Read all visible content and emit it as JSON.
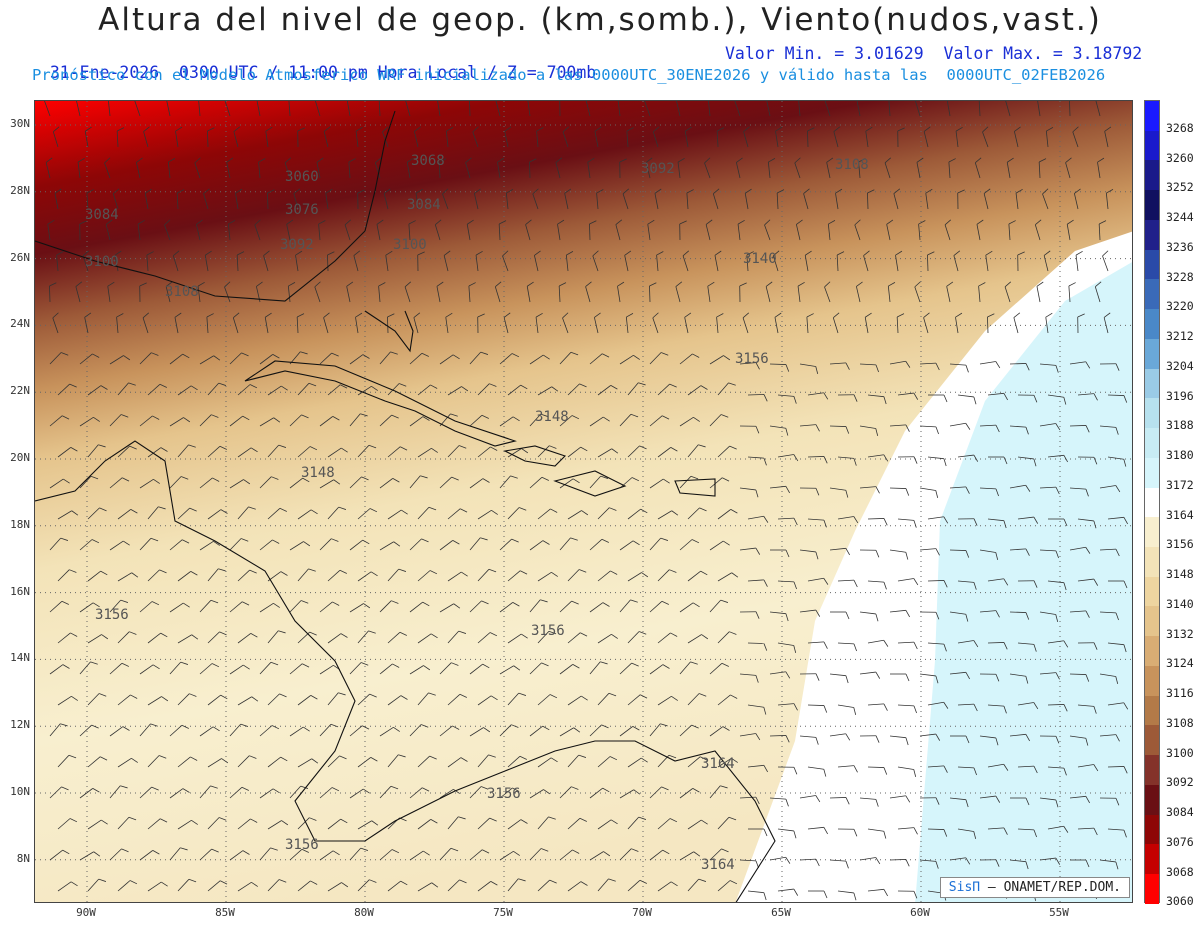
{
  "header": {
    "title": "Altura del nivel de geop. (km,somb.), Viento(nudos,vast.)",
    "sub_left": "31-Ene-2026  0300 UTC / 11:00 pm Hora Local / Z = 700mb",
    "sub_right": "Valor Min. = 3.01629  Valor Max. = 3.18792",
    "sub2": "Pronóstico con el Modelo Atmosferico WRF inicializado a las 0000UTC_30ENE2026 y válido hasta las  0000UTC_02FEB2026"
  },
  "axes": {
    "lat_labels": [
      "30N",
      "28N",
      "26N",
      "24N",
      "22N",
      "20N",
      "18N",
      "16N",
      "14N",
      "12N",
      "10N",
      "8N"
    ],
    "lon_labels": [
      "90W",
      "85W",
      "80W",
      "75W",
      "70W",
      "65W",
      "60W",
      "55W"
    ]
  },
  "colorbar": {
    "levels": [
      "3268",
      "3260",
      "3252",
      "3244",
      "3236",
      "3228",
      "3220",
      "3212",
      "3204",
      "3196",
      "3188",
      "3180",
      "3172",
      "3164",
      "3156",
      "3148",
      "3140",
      "3132",
      "3124",
      "3116",
      "3108",
      "3100",
      "3092",
      "3084",
      "3076",
      "3068",
      "3060"
    ],
    "colors": [
      "#1a1aff",
      "#1a1acc",
      "#1a1a8a",
      "#101060",
      "#20208a",
      "#2a4aa8",
      "#3a6ab8",
      "#4a88c8",
      "#6aa8d8",
      "#9acbe6",
      "#b7e1ee",
      "#c8ecf4",
      "#d6f5fb",
      "#ffffff",
      "#f8efcf",
      "#f3e3b8",
      "#eed5a0",
      "#e5c48c",
      "#d9ad74",
      "#c8935c",
      "#b37a48",
      "#9d5a38",
      "#84322a",
      "#6a0f14",
      "#8e0606",
      "#c40000",
      "#ff0000"
    ]
  },
  "contour_labels": [
    "3060",
    "3068",
    "3076",
    "3084",
    "3084",
    "3092",
    "3092",
    "3100",
    "3100",
    "3108",
    "3108",
    "3140",
    "3156",
    "3148",
    "3148",
    "3156",
    "3156",
    "3164",
    "3164",
    "3156",
    "3156"
  ],
  "credit": {
    "brand": "SisΠ",
    "text": " – ONAMET/REP.DOM."
  }
}
